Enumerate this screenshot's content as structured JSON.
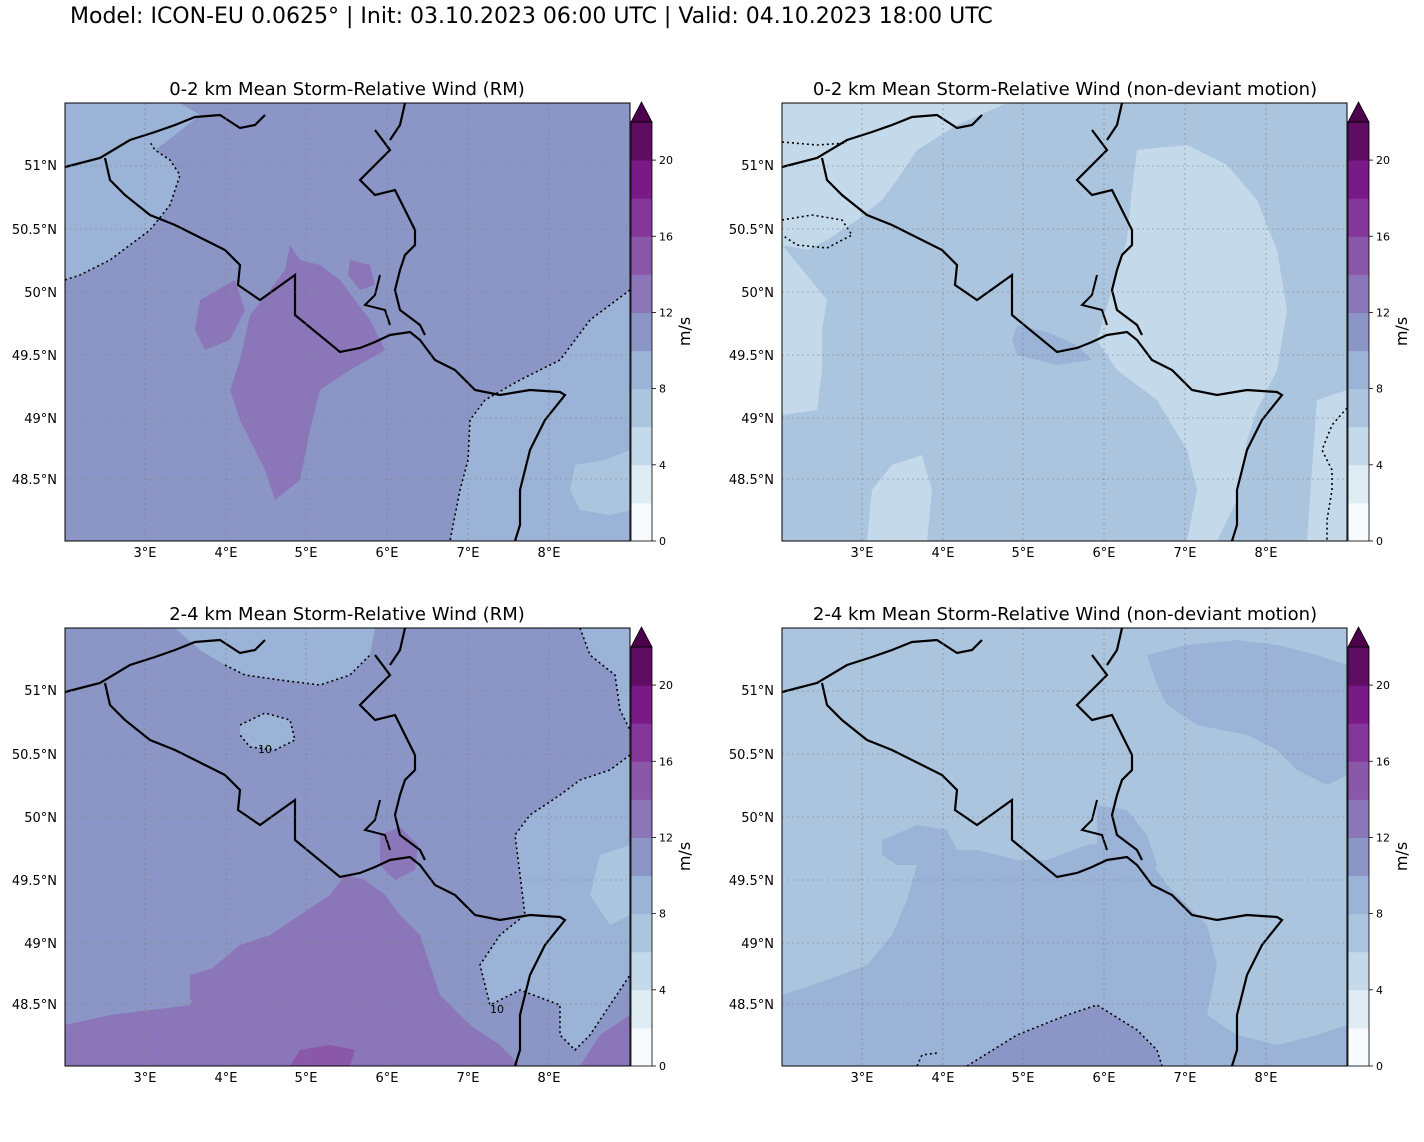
{
  "header": {
    "title": "Model: ICON-EU 0.0625° | Init: 03.10.2023 06:00 UTC | Valid: 04.10.2023 18:00 UTC"
  },
  "map_axes": {
    "lon_ticks": [
      "3°E",
      "4°E",
      "5°E",
      "6°E",
      "7°E",
      "8°E"
    ],
    "lat_ticks": [
      "51°N",
      "50.5°N",
      "50°N",
      "49.5°N",
      "49°N",
      "48.5°N"
    ]
  },
  "colorbar": {
    "unit": "m/s",
    "tick_labels": [
      "0",
      "4",
      "8",
      "12",
      "16",
      "20"
    ],
    "colors": [
      "#f7fbfd",
      "#e0ecf4",
      "#c4d9ea",
      "#acc5df",
      "#9bb3d7",
      "#8c96c6",
      "#8a76b8",
      "#8b58a9",
      "#85369a",
      "#7a1a86",
      "#5e0d63",
      "#4d004b"
    ]
  },
  "panels": [
    {
      "title": "0-2 km Mean Storm-Relative Wind (RM)",
      "background_color": "#8c96c6",
      "contour_labels": []
    },
    {
      "title": "0-2 km Mean Storm-Relative Wind (non-deviant motion)",
      "background_color": "#acc5df",
      "contour_labels": []
    },
    {
      "title": "2-4 km Mean Storm-Relative Wind (RM)",
      "background_color": "#8c96c6",
      "contour_labels": [
        "10",
        "10"
      ]
    },
    {
      "title": "2-4 km Mean Storm-Relative Wind (non-deviant motion)",
      "background_color": "#acc5df",
      "contour_labels": []
    }
  ]
}
